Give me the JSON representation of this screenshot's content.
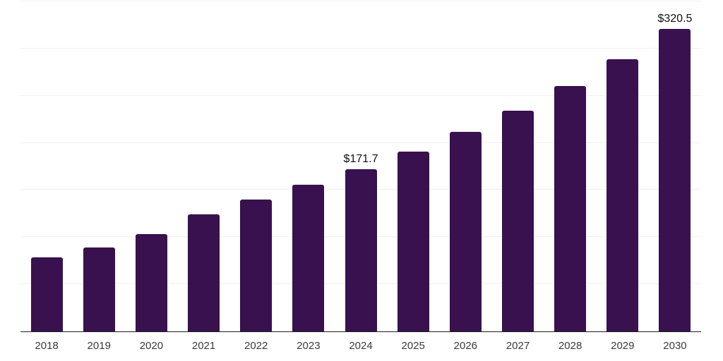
{
  "chart": {
    "background_color": "#ffffff",
    "bar_color": "#38114E",
    "axis_line_color": "#1f1f1f",
    "gridline_color": "#f1f0f2",
    "tick_label_color": "#3a3a3a",
    "data_label_color": "#111111"
  },
  "chart_data": {
    "type": "bar",
    "title": "",
    "xlabel": "",
    "ylabel": "",
    "categories": [
      "2018",
      "2019",
      "2020",
      "2021",
      "2022",
      "2023",
      "2024",
      "2025",
      "2026",
      "2027",
      "2028",
      "2029",
      "2030"
    ],
    "values": [
      78.3,
      88.9,
      103.0,
      123.9,
      139.5,
      155.2,
      171.7,
      190.9,
      211.3,
      234.4,
      260.4,
      288.9,
      320.5
    ],
    "bar_labels": [
      "",
      "",
      "",
      "",
      "",
      "",
      "$171.7",
      "",
      "",
      "",
      "",
      "",
      "$320.5"
    ],
    "ylim": [
      0,
      350
    ],
    "gridline_interval": 50,
    "grid": true,
    "legend": "none",
    "y_axis_tick_labels_visible": false
  }
}
